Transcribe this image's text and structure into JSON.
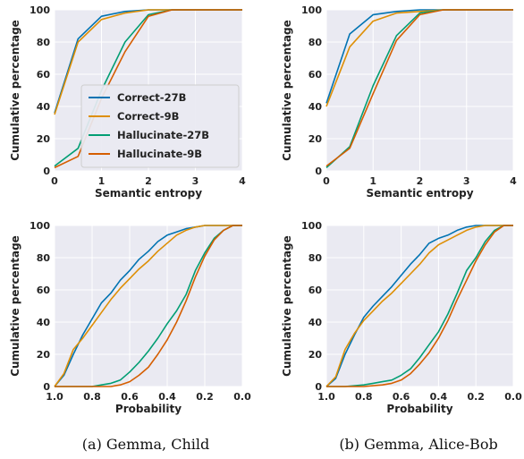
{
  "colors": {
    "panel_bg": "#eaeaf2",
    "grid": "#ffffff",
    "series": [
      "#0173b2",
      "#de8f05",
      "#029e73",
      "#d55e00"
    ]
  },
  "captions": [
    "(a) Gemma, Child",
    "(b) Gemma, Alice-Bob"
  ],
  "chart_data": [
    {
      "type": "line",
      "xlabel": "Semantic entropy",
      "ylabel": "Cumulative percentage",
      "xlim": [
        0,
        4
      ],
      "ylim": [
        0,
        100
      ],
      "xreverse": false,
      "xticks": [
        0,
        1,
        2,
        3,
        4
      ],
      "xtick_labels": [
        "0",
        "1",
        "2",
        "3",
        "4"
      ],
      "yticks": [
        0,
        20,
        40,
        60,
        80,
        100
      ],
      "ytick_labels": [
        "0",
        "20",
        "40",
        "60",
        "80",
        "100"
      ],
      "grid": true,
      "legend": "center-left",
      "series": [
        {
          "name": "Correct-27B",
          "x": [
            0,
            0.5,
            1,
            1.5,
            2,
            2.5,
            3,
            3.5,
            4
          ],
          "y": [
            36,
            82,
            96,
            99,
            100,
            100,
            100,
            100,
            100
          ]
        },
        {
          "name": "Correct-9B",
          "x": [
            0,
            0.5,
            1,
            1.5,
            2,
            2.5,
            3,
            3.5,
            4
          ],
          "y": [
            35,
            80,
            94,
            98,
            100,
            100,
            100,
            100,
            100
          ]
        },
        {
          "name": "Hallucinate-27B",
          "x": [
            0,
            0.5,
            1,
            1.5,
            2,
            2.5,
            3,
            3.5,
            4
          ],
          "y": [
            3,
            14,
            50,
            80,
            97,
            100,
            100,
            100,
            100
          ]
        },
        {
          "name": "Hallucinate-9B",
          "x": [
            0,
            0.5,
            1,
            1.5,
            2,
            2.5,
            3,
            3.5,
            4
          ],
          "y": [
            2,
            9,
            45,
            74,
            96,
            100,
            100,
            100,
            100
          ]
        }
      ]
    },
    {
      "type": "line",
      "xlabel": "Semantic entropy",
      "ylabel": "Cumulative percentage",
      "xlim": [
        0,
        4
      ],
      "ylim": [
        0,
        100
      ],
      "xreverse": false,
      "xticks": [
        0,
        1,
        2,
        3,
        4
      ],
      "xtick_labels": [
        "0",
        "1",
        "2",
        "3",
        "4"
      ],
      "yticks": [
        0,
        20,
        40,
        60,
        80,
        100
      ],
      "ytick_labels": [
        "0",
        "20",
        "40",
        "60",
        "80",
        "100"
      ],
      "grid": true,
      "series": [
        {
          "name": "Correct-27B",
          "x": [
            0,
            0.5,
            1,
            1.5,
            2,
            2.5,
            3,
            3.5,
            4
          ],
          "y": [
            42,
            85,
            97,
            99,
            100,
            100,
            100,
            100,
            100
          ]
        },
        {
          "name": "Correct-9B",
          "x": [
            0,
            0.5,
            1,
            1.5,
            2,
            2.5,
            3,
            3.5,
            4
          ],
          "y": [
            40,
            77,
            93,
            98,
            99,
            100,
            100,
            100,
            100
          ]
        },
        {
          "name": "Hallucinate-27B",
          "x": [
            0,
            0.5,
            1,
            1.5,
            2,
            2.5,
            3,
            3.5,
            4
          ],
          "y": [
            2,
            15,
            53,
            84,
            98,
            100,
            100,
            100,
            100
          ]
        },
        {
          "name": "Hallucinate-9B",
          "x": [
            0,
            0.5,
            1,
            1.5,
            2,
            2.5,
            3,
            3.5,
            4
          ],
          "y": [
            3,
            14,
            48,
            81,
            97,
            100,
            100,
            100,
            100
          ]
        }
      ]
    },
    {
      "type": "line",
      "xlabel": "Probability",
      "ylabel": "Cumulative percentage",
      "xlim": [
        0,
        1
      ],
      "ylim": [
        0,
        100
      ],
      "xreverse": true,
      "xticks": [
        1.0,
        0.8,
        0.6,
        0.4,
        0.2,
        0.0
      ],
      "xtick_labels": [
        "1.0",
        "0.8",
        "0.6",
        "0.4",
        "0.2",
        "0.0"
      ],
      "yticks": [
        0,
        20,
        40,
        60,
        80,
        100
      ],
      "ytick_labels": [
        "0",
        "20",
        "40",
        "60",
        "80",
        "100"
      ],
      "grid": true,
      "series": [
        {
          "name": "Correct-27B",
          "x": [
            1.0,
            0.95,
            0.9,
            0.85,
            0.8,
            0.75,
            0.7,
            0.65,
            0.6,
            0.55,
            0.5,
            0.45,
            0.4,
            0.35,
            0.3,
            0.25,
            0.2,
            0.15,
            0.1,
            0.05,
            0.0
          ],
          "y": [
            0,
            7,
            20,
            32,
            42,
            52,
            58,
            66,
            72,
            79,
            84,
            90,
            94,
            96,
            98,
            99,
            100,
            100,
            100,
            100,
            100
          ]
        },
        {
          "name": "Correct-9B",
          "x": [
            1.0,
            0.95,
            0.9,
            0.85,
            0.8,
            0.75,
            0.7,
            0.65,
            0.6,
            0.55,
            0.5,
            0.45,
            0.4,
            0.35,
            0.3,
            0.25,
            0.2,
            0.15,
            0.1,
            0.05,
            0.0
          ],
          "y": [
            0,
            8,
            23,
            30,
            38,
            46,
            54,
            61,
            67,
            73,
            78,
            84,
            89,
            94,
            97,
            99,
            100,
            100,
            100,
            100,
            100
          ]
        },
        {
          "name": "Hallucinate-27B",
          "x": [
            1.0,
            0.9,
            0.8,
            0.75,
            0.7,
            0.65,
            0.6,
            0.55,
            0.5,
            0.45,
            0.4,
            0.35,
            0.3,
            0.25,
            0.2,
            0.15,
            0.1,
            0.05,
            0.0
          ],
          "y": [
            0,
            0,
            0,
            1,
            2,
            4,
            9,
            15,
            22,
            30,
            39,
            47,
            57,
            72,
            83,
            92,
            97,
            100,
            100
          ]
        },
        {
          "name": "Hallucinate-9B",
          "x": [
            1.0,
            0.9,
            0.8,
            0.7,
            0.65,
            0.6,
            0.55,
            0.5,
            0.45,
            0.4,
            0.35,
            0.3,
            0.25,
            0.2,
            0.15,
            0.1,
            0.05,
            0.0
          ],
          "y": [
            0,
            0,
            0,
            0,
            1,
            3,
            7,
            12,
            20,
            29,
            40,
            53,
            68,
            81,
            91,
            97,
            100,
            100
          ]
        }
      ]
    },
    {
      "type": "line",
      "xlabel": "Probability",
      "ylabel": "Cumulative percentage",
      "xlim": [
        0,
        1
      ],
      "ylim": [
        0,
        100
      ],
      "xreverse": true,
      "xticks": [
        1.0,
        0.8,
        0.6,
        0.4,
        0.2,
        0.0
      ],
      "xtick_labels": [
        "1.0",
        "0.8",
        "0.6",
        "0.4",
        "0.2",
        "0.0"
      ],
      "yticks": [
        0,
        20,
        40,
        60,
        80,
        100
      ],
      "ytick_labels": [
        "0",
        "20",
        "40",
        "60",
        "80",
        "100"
      ],
      "grid": true,
      "series": [
        {
          "name": "Correct-27B",
          "x": [
            1.0,
            0.95,
            0.9,
            0.85,
            0.8,
            0.75,
            0.7,
            0.65,
            0.6,
            0.55,
            0.5,
            0.45,
            0.4,
            0.35,
            0.3,
            0.25,
            0.2,
            0.15,
            0.1,
            0.05,
            0.0
          ],
          "y": [
            0,
            5,
            20,
            32,
            43,
            50,
            56,
            62,
            69,
            76,
            82,
            89,
            92,
            94,
            97,
            99,
            100,
            100,
            100,
            100,
            100
          ]
        },
        {
          "name": "Correct-9B",
          "x": [
            1.0,
            0.95,
            0.9,
            0.85,
            0.8,
            0.75,
            0.7,
            0.65,
            0.6,
            0.55,
            0.5,
            0.45,
            0.4,
            0.35,
            0.3,
            0.25,
            0.2,
            0.15,
            0.1,
            0.05,
            0.0
          ],
          "y": [
            0,
            6,
            23,
            33,
            41,
            47,
            53,
            58,
            64,
            70,
            76,
            83,
            88,
            91,
            94,
            97,
            99,
            100,
            100,
            100,
            100
          ]
        },
        {
          "name": "Hallucinate-27B",
          "x": [
            1.0,
            0.9,
            0.8,
            0.75,
            0.7,
            0.65,
            0.6,
            0.55,
            0.5,
            0.45,
            0.4,
            0.35,
            0.3,
            0.25,
            0.2,
            0.15,
            0.1,
            0.05,
            0.0
          ],
          "y": [
            0,
            0,
            1,
            2,
            3,
            4,
            7,
            11,
            18,
            26,
            34,
            45,
            58,
            72,
            80,
            90,
            97,
            100,
            100
          ]
        },
        {
          "name": "Hallucinate-9B",
          "x": [
            1.0,
            0.9,
            0.8,
            0.7,
            0.65,
            0.6,
            0.55,
            0.5,
            0.45,
            0.4,
            0.35,
            0.3,
            0.25,
            0.2,
            0.15,
            0.1,
            0.05,
            0.0
          ],
          "y": [
            0,
            0,
            0,
            1,
            2,
            4,
            8,
            14,
            21,
            30,
            41,
            54,
            66,
            78,
            88,
            96,
            100,
            100
          ]
        }
      ]
    }
  ]
}
